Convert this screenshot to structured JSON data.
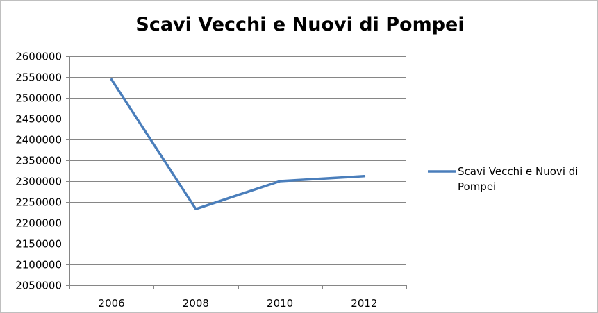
{
  "chart_data": {
    "type": "line",
    "title": "Scavi Vecchi e Nuovi di Pompei",
    "xlabel": "",
    "ylabel": "",
    "categories": [
      "2006",
      "2008",
      "2010",
      "2012"
    ],
    "series": [
      {
        "name": "Scavi Vecchi e Nuovi di Pompei",
        "values": [
          2544000,
          2233000,
          2300000,
          2312000
        ],
        "color": "#4a7ebb"
      }
    ],
    "ylim": [
      2050000,
      2600000
    ],
    "ytick_step": 50000,
    "yticks": [
      "2600000",
      "2550000",
      "2500000",
      "2450000",
      "2400000",
      "2350000",
      "2300000",
      "2250000",
      "2200000",
      "2150000",
      "2100000",
      "2050000"
    ],
    "grid": true,
    "legend_position": "right",
    "legend_lines": [
      "Scavi Vecchi e Nuovi di",
      "Pompei"
    ]
  }
}
